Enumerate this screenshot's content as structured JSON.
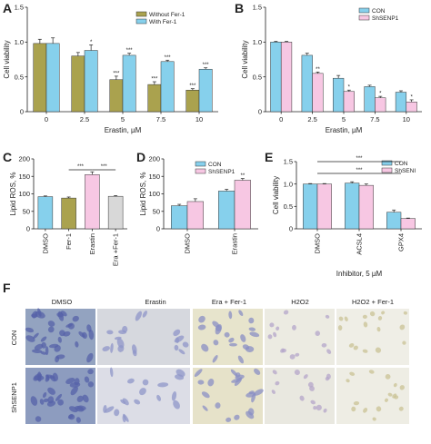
{
  "panel_labels": [
    "A",
    "B",
    "C",
    "D",
    "E",
    "F"
  ],
  "colors": {
    "olive": "#aaa24e",
    "skyblue": "#86d0ec",
    "pink": "#f7c7e3",
    "gray": "#d8d8d8",
    "axis": "#222222"
  },
  "chart_data": [
    {
      "id": "A",
      "type": "bar",
      "categories": [
        "0",
        "2.5",
        "5",
        "7.5",
        "10"
      ],
      "xlabel": "Erastin, µM",
      "ylabel": "Cell viability",
      "ylim": [
        0,
        1.5
      ],
      "yticks": [
        "0",
        "0.5",
        "1.0",
        "1.5"
      ],
      "series": [
        {
          "name": "Without Fer-1",
          "color": "#aaa24e",
          "values": [
            0.98,
            0.8,
            0.46,
            0.39,
            0.31
          ],
          "errors": [
            0.06,
            0.05,
            0.05,
            0.04,
            0.02
          ],
          "stars": [
            "",
            "",
            "***",
            "***",
            "***"
          ]
        },
        {
          "name": "With Fer-1",
          "color": "#86d0ec",
          "values": [
            0.98,
            0.88,
            0.81,
            0.72,
            0.61
          ],
          "errors": [
            0.08,
            0.08,
            0.03,
            0.02,
            0.02
          ],
          "stars": [
            "",
            "*",
            "***",
            "***",
            "***"
          ]
        }
      ],
      "legend": "top-right"
    },
    {
      "id": "B",
      "type": "bar",
      "categories": [
        "0",
        "2.5",
        "5",
        "7.5",
        "10"
      ],
      "xlabel": "Erastin, µM",
      "ylabel": "Cell viability",
      "ylim": [
        0,
        1.5
      ],
      "yticks": [
        "0",
        "0.5",
        "1.0",
        "1.5"
      ],
      "series": [
        {
          "name": "CON",
          "color": "#86d0ec",
          "values": [
            1.0,
            0.81,
            0.48,
            0.36,
            0.28
          ],
          "errors": [
            0.01,
            0.03,
            0.04,
            0.02,
            0.02
          ],
          "stars": [
            "",
            "",
            "",
            "",
            ""
          ]
        },
        {
          "name": "ShSENP1",
          "color": "#f7c7e3",
          "values": [
            1.0,
            0.55,
            0.29,
            0.2,
            0.14
          ],
          "errors": [
            0.01,
            0.02,
            0.02,
            0.02,
            0.03
          ],
          "stars": [
            "",
            "**",
            "*",
            "*",
            "*"
          ]
        }
      ],
      "legend": "top-right"
    },
    {
      "id": "C",
      "type": "bar",
      "categories": [
        "DMSO",
        "Fer-1",
        "Erastin",
        "Era +Fer-1"
      ],
      "ylabel": "Lipid ROS, %",
      "ylim": [
        0,
        200
      ],
      "yticks": [
        "0",
        "50",
        "100",
        "150",
        "200"
      ],
      "values": [
        92,
        88,
        155,
        93
      ],
      "errors": [
        2,
        3,
        8,
        2
      ],
      "colors": [
        "#86d0ec",
        "#aaa24e",
        "#f7c7e3",
        "#d8d8d8"
      ],
      "brackets": [
        {
          "from": 1,
          "to": 2,
          "label": "***"
        },
        {
          "from": 2,
          "to": 3,
          "label": "***"
        }
      ]
    },
    {
      "id": "D",
      "type": "bar",
      "categories": [
        "DMSO",
        "Erastin"
      ],
      "ylabel": "Lipid ROS, %",
      "ylim": [
        0,
        200
      ],
      "yticks": [
        "0",
        "50",
        "100",
        "150",
        "200"
      ],
      "series": [
        {
          "name": "CON",
          "color": "#86d0ec",
          "values": [
            66,
            108
          ],
          "errors": [
            4,
            5
          ],
          "stars": [
            "",
            ""
          ]
        },
        {
          "name": "ShSENP1",
          "color": "#f7c7e3",
          "values": [
            78,
            139
          ],
          "errors": [
            8,
            5
          ],
          "stars": [
            "",
            "**"
          ]
        }
      ],
      "legend": "top-left"
    },
    {
      "id": "E",
      "type": "bar",
      "categories": [
        "DMSO",
        "ACSL4",
        "GPX4"
      ],
      "xlabel": "Inhibitor, 5 µM",
      "ylabel": "Cell viability",
      "ylim": [
        0,
        1.5
      ],
      "yticks": [
        "0",
        "0.5",
        "1.0",
        "1.5"
      ],
      "series": [
        {
          "name": "CON",
          "color": "#86d0ec",
          "values": [
            1.0,
            1.02,
            0.37
          ],
          "errors": [
            0.01,
            0.03,
            0.05
          ],
          "stars": [
            "",
            "",
            ""
          ]
        },
        {
          "name": "ShSENI",
          "color": "#f7c7e3",
          "values": [
            1.0,
            0.97,
            0.23
          ],
          "errors": [
            0.01,
            0.03,
            0.01
          ],
          "stars": [
            "",
            "",
            ""
          ]
        }
      ],
      "brackets": [
        {
          "from": 0,
          "to": 2,
          "label": "***"
        },
        {
          "from": 0,
          "to": 2,
          "label": "***"
        }
      ],
      "legend": "top-right"
    }
  ],
  "figure_f": {
    "columns": [
      "DMSO",
      "Erastin",
      "Era + Fer-1",
      "H2O2",
      "H2O2 + Fer-1"
    ],
    "rows": [
      "CON",
      "ShSENP1"
    ]
  }
}
